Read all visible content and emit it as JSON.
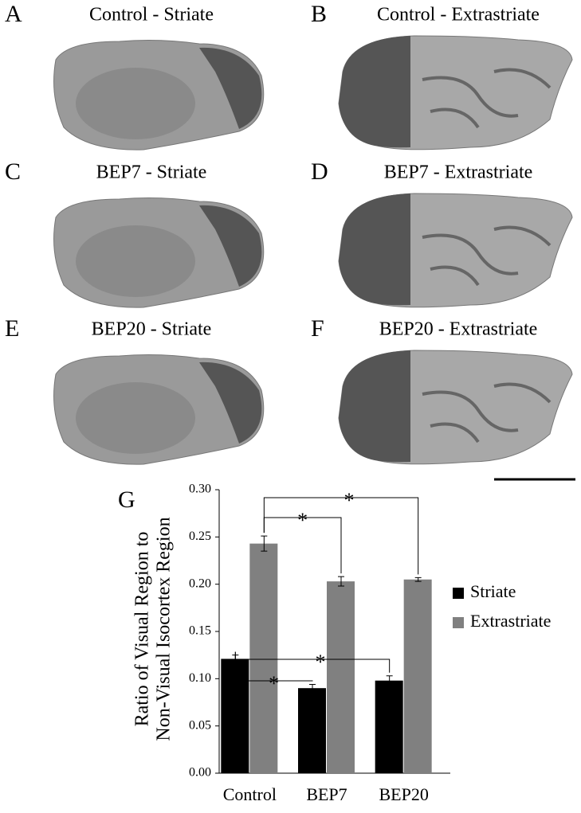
{
  "panels": [
    {
      "letter": "A",
      "title": "Control - Striate"
    },
    {
      "letter": "B",
      "title": "Control - Extrastriate"
    },
    {
      "letter": "C",
      "title": "BEP7 - Striate"
    },
    {
      "letter": "D",
      "title": "BEP7 - Extrastriate"
    },
    {
      "letter": "E",
      "title": "BEP20 - Striate"
    },
    {
      "letter": "F",
      "title": "BEP20 - Extrastriate"
    }
  ],
  "chart_data": {
    "type": "bar",
    "panel_letter": "G",
    "y_label": [
      "Ratio of Visual Region to",
      "Non-Visual Isocortex Region"
    ],
    "categories": [
      "Control",
      "BEP7",
      "BEP20"
    ],
    "series": [
      {
        "name": "Striate",
        "color": "#000000",
        "values": [
          0.121,
          0.09,
          0.098
        ],
        "errors": [
          0.004,
          0.004,
          0.005
        ]
      },
      {
        "name": "Extrastriate",
        "color": "#808080",
        "values": [
          0.243,
          0.203,
          0.205
        ],
        "errors": [
          0.008,
          0.005,
          0.002
        ]
      }
    ],
    "ylim": [
      0,
      0.3
    ],
    "yticks": [
      {
        "value": 0,
        "label": "0.00"
      },
      {
        "value": 0.05,
        "label": "0.05"
      },
      {
        "value": 0.1,
        "label": "0.10"
      },
      {
        "value": 0.15,
        "label": "0.15"
      },
      {
        "value": 0.2,
        "label": "0.20"
      },
      {
        "value": 0.25,
        "label": "0.25"
      },
      {
        "value": 0.3,
        "label": "0.30"
      }
    ],
    "significance": [
      "*",
      "*",
      "*",
      "*"
    ]
  }
}
